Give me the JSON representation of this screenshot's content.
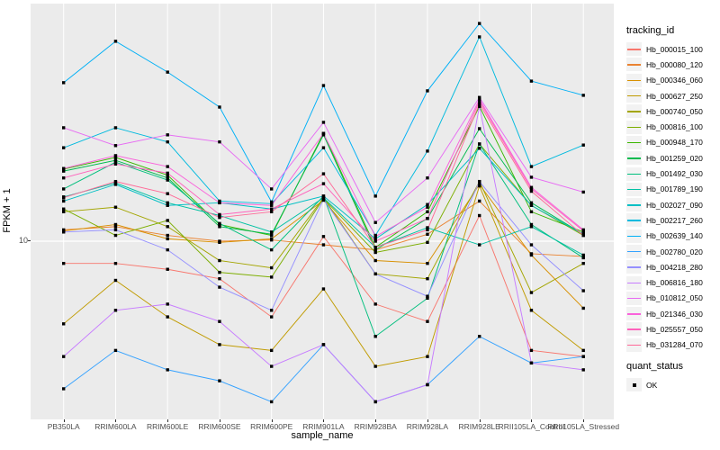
{
  "axes": {
    "y_title": "FPKM + 1",
    "x_title": "sample_name",
    "y_tick_label": "10",
    "x_tick_labels": [
      "PB350LA",
      "RRIM600LA",
      "RRIM600LE",
      "RRIM600SE",
      "RRIM600PE",
      "RRIM901LA",
      "RRIM928BA",
      "RRIM928LA",
      "RRIM928LE",
      "RRII105LA_Control",
      "RRII105LA_Stressed"
    ]
  },
  "legend": {
    "tracking_title": "tracking_id",
    "quant_title": "quant_status",
    "quant_items": [
      {
        "label": "OK",
        "marker": "black-square"
      }
    ]
  },
  "colors": {
    "panel_background": "#EBEBEB",
    "grid": "#FFFFFF",
    "tick_text": "#4D4D4D",
    "point": "#000000",
    "legend_key_background": "#F2F2F2"
  },
  "chart_data": {
    "type": "line",
    "x_axis": "sample_name",
    "y_axis": "FPKM + 1",
    "y_scale": "log10",
    "ylim": [
      2.26,
      70.2
    ],
    "y_breaks": [
      10
    ],
    "grid": "on",
    "legend_position": "right",
    "marker": "small-black-square",
    "categories": [
      "PB350LA",
      "RRIM600LA",
      "RRIM600LE",
      "RRIM600SE",
      "RRIM600PE",
      "RRIM901LA",
      "RRIM928BA",
      "RRIM928LA",
      "RRIM928LE",
      "RRII105LA_Control",
      "RRII105LA_Stressed"
    ],
    "series": [
      {
        "name": "Hb_000015_100",
        "color": "#F8766D",
        "values": [
          8.3,
          8.3,
          7.9,
          7.3,
          5.3,
          10.4,
          5.9,
          5.1,
          12.4,
          4.0,
          3.8
        ]
      },
      {
        "name": "Hb_000080_120",
        "color": "#EA8331",
        "values": [
          11.0,
          11.3,
          10.5,
          10.0,
          10.1,
          9.7,
          9.3,
          10.6,
          14.0,
          9.0,
          8.8
        ]
      },
      {
        "name": "Hb_000346_060",
        "color": "#D89000",
        "values": [
          10.9,
          11.5,
          10.2,
          9.9,
          10.2,
          14.1,
          8.5,
          8.3,
          16.1,
          8.9,
          5.7
        ]
      },
      {
        "name": "Hb_000627_250",
        "color": "#C09B00",
        "values": [
          5.0,
          7.2,
          5.3,
          4.2,
          4.0,
          6.7,
          3.5,
          3.8,
          15.9,
          5.6,
          4.0
        ]
      },
      {
        "name": "Hb_000740_050",
        "color": "#A3A500",
        "values": [
          12.8,
          13.3,
          11.3,
          8.5,
          8.0,
          14.4,
          7.6,
          7.3,
          16.5,
          6.5,
          8.3
        ]
      },
      {
        "name": "Hb_000816_100",
        "color": "#7CAE00",
        "values": [
          13.1,
          10.5,
          11.9,
          7.7,
          7.4,
          14.3,
          9.1,
          9.9,
          22.6,
          13.5,
          10.5
        ]
      },
      {
        "name": "Hb_000948_170",
        "color": "#39B600",
        "values": [
          18.3,
          20.2,
          17.4,
          11.5,
          10.5,
          24.7,
          9.5,
          12.8,
          31.0,
          12.8,
          10.8
        ]
      },
      {
        "name": "Hb_001259_020",
        "color": "#00BB4E",
        "values": [
          18.0,
          19.7,
          17.0,
          11.3,
          10.6,
          24.4,
          9.3,
          12.1,
          25.7,
          13.8,
          10.6
        ]
      },
      {
        "name": "Hb_001492_030",
        "color": "#00BF7D",
        "values": [
          15.5,
          19.4,
          16.7,
          11.6,
          9.3,
          14.6,
          4.5,
          6.2,
          22.6,
          11.5,
          8.7
        ]
      },
      {
        "name": "Hb_001789_190",
        "color": "#00C1A3",
        "values": [
          14.5,
          16.3,
          13.8,
          12.4,
          10.8,
          14.4,
          9.5,
          11.2,
          9.7,
          11.3,
          8.9
        ]
      },
      {
        "name": "Hb_002027_090",
        "color": "#00BFC4",
        "values": [
          14.0,
          16.1,
          13.5,
          13.8,
          13.1,
          14.6,
          10.2,
          13.6,
          21.8,
          13.5,
          10.6
        ]
      },
      {
        "name": "Hb_002217_260",
        "color": "#00BADE",
        "values": [
          21.9,
          25.9,
          23.0,
          14.0,
          13.7,
          21.9,
          10.5,
          21.3,
          55.5,
          18.7,
          22.4
        ]
      },
      {
        "name": "Hb_002639_140",
        "color": "#00B0F6",
        "values": [
          37.8,
          53.5,
          41.3,
          30.8,
          13.9,
          36.9,
          14.6,
          35.3,
          62.1,
          38.3,
          34.0
        ]
      },
      {
        "name": "Hb_002780_020",
        "color": "#35A2FF",
        "values": [
          2.9,
          4.0,
          3.4,
          3.1,
          2.6,
          4.2,
          2.6,
          3.0,
          4.5,
          3.6,
          3.8
        ]
      },
      {
        "name": "Hb_004218_280",
        "color": "#9590FF",
        "values": [
          10.8,
          11.0,
          9.3,
          6.8,
          5.6,
          14.2,
          7.6,
          6.3,
          16.5,
          9.7,
          6.6
        ]
      },
      {
        "name": "Hb_006816_180",
        "color": "#C77CFF",
        "values": [
          3.8,
          5.6,
          5.9,
          5.1,
          3.5,
          4.2,
          2.6,
          3.0,
          31.0,
          3.6,
          3.4
        ]
      },
      {
        "name": "Hb_010812_050",
        "color": "#E76BF3",
        "values": [
          25.9,
          22.3,
          24.4,
          23.0,
          15.5,
          27.1,
          11.7,
          17.0,
          33.4,
          17.1,
          15.1
        ]
      },
      {
        "name": "Hb_021346_030",
        "color": "#FA62DB",
        "values": [
          18.4,
          20.5,
          18.7,
          13.8,
          13.5,
          24.7,
          10.4,
          13.3,
          32.9,
          15.7,
          11.0
        ]
      },
      {
        "name": "Hb_025557_050",
        "color": "#FF62BC",
        "values": [
          17.0,
          19.1,
          17.7,
          12.5,
          13.1,
          16.2,
          10.0,
          12.1,
          32.4,
          15.5,
          10.9
        ]
      },
      {
        "name": "Hb_031284_070",
        "color": "#FF6A98",
        "values": [
          14.4,
          16.5,
          14.9,
          12.2,
          12.8,
          17.6,
          9.5,
          11.0,
          31.7,
          15.2,
          10.5
        ]
      }
    ],
    "quant_status": "OK"
  }
}
